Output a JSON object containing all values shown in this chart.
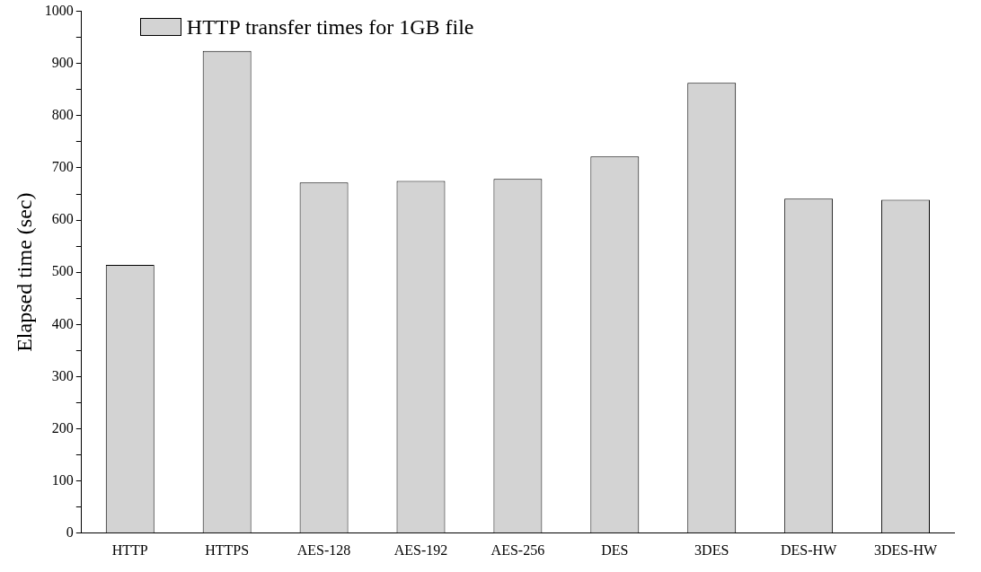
{
  "chart_data": {
    "type": "bar",
    "ylabel": "Elapsed time (sec)",
    "categories": [
      "HTTP",
      "HTTPS",
      "AES-128",
      "AES-192",
      "AES-256",
      "DES",
      "3DES",
      "DES-HW",
      "3DES-HW"
    ],
    "series": [
      {
        "name": "HTTP transfer times for 1GB file",
        "color": "#d3d3d3",
        "values": [
          514,
          924,
          672,
          675,
          679,
          722,
          863,
          641,
          639
        ]
      }
    ],
    "ylim": [
      0,
      1000
    ],
    "yticks": [
      0,
      {
        "value": 50,
        "label": null
      },
      100,
      {
        "value": 150,
        "label": null
      },
      200,
      {
        "value": 250,
        "label": null
      },
      300,
      {
        "value": 350,
        "label": null
      },
      400,
      {
        "value": 450,
        "label": null
      },
      500,
      {
        "value": 550,
        "label": null
      },
      600,
      {
        "value": 650,
        "label": null
      },
      700,
      {
        "value": 750,
        "label": null
      },
      800,
      {
        "value": 850,
        "label": null
      },
      900,
      {
        "value": 950,
        "label": null
      },
      1000
    ],
    "grid": false,
    "legend": "top left"
  }
}
